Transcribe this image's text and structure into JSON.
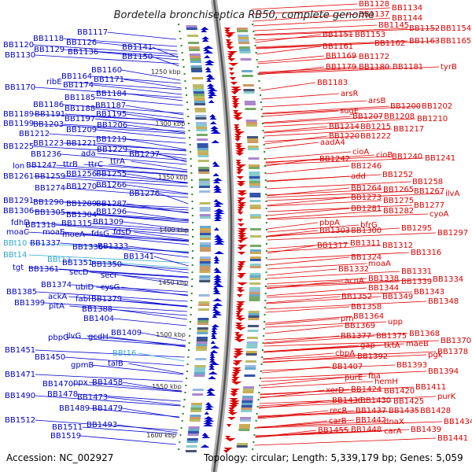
{
  "title": "Bordetella bronchiseptica RB50, complete genome",
  "footer": {
    "accession": "Accession: NC_002927",
    "summary": "Topology: circular; Length: 5,339,179 bp; Genes: 5,059"
  },
  "colors": {
    "forward": "#0000cc",
    "reverse": "#dd0000",
    "rna": "#33aacc",
    "backbone": "#888888",
    "tick": "#228822"
  },
  "ruler": [
    "1250 kbp",
    "1300 kbp",
    "1350 kbp",
    "1400 kbp",
    "1450 kbp",
    "1500 kbp",
    "1550 kbp",
    "1600 kbp"
  ],
  "left_labels": [
    [
      "BB1117",
      98,
      44
    ],
    [
      "BB1118",
      42,
      52
    ],
    [
      "BB1126",
      84,
      57
    ],
    [
      "BB1120",
      4,
      60
    ],
    [
      "BB1141",
      155,
      63
    ],
    [
      "BB1129",
      43,
      66
    ],
    [
      "BB1136",
      86,
      69
    ],
    [
      "BB1130",
      6,
      73
    ],
    [
      "BB1150",
      155,
      75
    ],
    [
      "BB1160",
      116,
      92
    ],
    [
      "BB1164",
      78,
      100
    ],
    [
      "ribE",
      59,
      107
    ],
    [
      "BB1171",
      119,
      104
    ],
    [
      "BB1174",
      80,
      111
    ],
    [
      "BB1170",
      6,
      114
    ],
    [
      "BB1184",
      122,
      122
    ],
    [
      "BB1185",
      82,
      127
    ],
    [
      "BB1186",
      42,
      136
    ],
    [
      "BB1187",
      121,
      137
    ],
    [
      "BB1188",
      82,
      141
    ],
    [
      "BB1189",
      4,
      148
    ],
    [
      "BB1191",
      44,
      148
    ],
    [
      "BB1195",
      122,
      148
    ],
    [
      "BB1197",
      82,
      154
    ],
    [
      "BB1199",
      4,
      160
    ],
    [
      "BB1203",
      42,
      161
    ],
    [
      "BB1206",
      123,
      162
    ],
    [
      "BB1209",
      84,
      168
    ],
    [
      "BB1212",
      24,
      173
    ],
    [
      "BB1219",
      122,
      180
    ],
    [
      "BB1223",
      42,
      185
    ],
    [
      "BB1221",
      84,
      185
    ],
    [
      "BB1225",
      4,
      189
    ],
    [
      "BB1229",
      123,
      193
    ],
    [
      "BB1236",
      39,
      199
    ],
    [
      "ada",
      103,
      198
    ],
    [
      "BB1237",
      164,
      199
    ],
    [
      "ttrA",
      140,
      208
    ],
    [
      "lon",
      16,
      214
    ],
    [
      "BB1247",
      33,
      213
    ],
    [
      "ttrB",
      80,
      212
    ],
    [
      "ttrC",
      112,
      212
    ],
    [
      "BB1256",
      84,
      224
    ],
    [
      "BB1255",
      122,
      224
    ],
    [
      "BB1261",
      4,
      227
    ],
    [
      "BB1259",
      44,
      227
    ],
    [
      "BB1270",
      84,
      240
    ],
    [
      "BB1266",
      122,
      238
    ],
    [
      "BB1274",
      44,
      242
    ],
    [
      "BB1276",
      164,
      249
    ],
    [
      "BB1291",
      4,
      258
    ],
    [
      "BB1290",
      42,
      260
    ],
    [
      "BB1289",
      84,
      262
    ],
    [
      "BB1287",
      122,
      262
    ],
    [
      "BB1306",
      4,
      271
    ],
    [
      "BB1305",
      44,
      273
    ],
    [
      "BB1304",
      84,
      276
    ],
    [
      "BB1296",
      122,
      272
    ],
    [
      "fdhD",
      14,
      286
    ],
    [
      "BB1318",
      32,
      289
    ],
    [
      "BB1315",
      78,
      287
    ],
    [
      "BB1309",
      118,
      285
    ],
    [
      "moaC",
      8,
      298
    ],
    [
      "moaE",
      54,
      298
    ],
    [
      "moeA",
      79,
      301
    ],
    [
      "fdsG",
      116,
      300
    ],
    [
      "fdsD",
      144,
      298
    ],
    [
      "BBt10",
      4,
      312
    ],
    [
      "BB1337",
      38,
      312
    ],
    [
      "BB1336",
      92,
      317
    ],
    [
      "BB1333",
      124,
      316
    ],
    [
      "BBt14",
      4,
      327
    ],
    [
      "BBt13",
      60,
      333
    ],
    [
      "BB1341",
      157,
      329
    ],
    [
      "tgt",
      16,
      343
    ],
    [
      "BB1351",
      79,
      337
    ],
    [
      "BB1361",
      36,
      345
    ],
    [
      "BB1350",
      116,
      339
    ],
    [
      "secD",
      88,
      349
    ],
    [
      "secF",
      128,
      353
    ],
    [
      "BB1374",
      52,
      365
    ],
    [
      "ubiD",
      96,
      368
    ],
    [
      "cysG",
      128,
      368
    ],
    [
      "BB1385",
      8,
      374
    ],
    [
      "ackA",
      61,
      380
    ],
    [
      "fabI",
      96,
      383
    ],
    [
      "BB1379",
      116,
      383
    ],
    [
      "BB1399",
      18,
      388
    ],
    [
      "pitA",
      62,
      392
    ],
    [
      "BB1388",
      104,
      396
    ],
    [
      "BB1404",
      106,
      408
    ],
    [
      "BB1409",
      141,
      426
    ],
    [
      "pbpG",
      61,
      432
    ],
    [
      "ilvG",
      84,
      430
    ],
    [
      "gcdH",
      112,
      431
    ],
    [
      "BB1451",
      6,
      448
    ],
    [
      "BBt16",
      143,
      452
    ],
    [
      "BB1450",
      44,
      457
    ],
    [
      "gpmB",
      90,
      467
    ],
    [
      "talB",
      137,
      465
    ],
    [
      "BB1471",
      6,
      479
    ],
    [
      "BB1470",
      54,
      491
    ],
    [
      "ppx",
      93,
      489
    ],
    [
      "BB1458",
      117,
      489
    ],
    [
      "BB1490",
      6,
      506
    ],
    [
      "BB1478",
      60,
      504
    ],
    [
      "BB1473",
      98,
      508
    ],
    [
      "BB1489",
      75,
      522
    ],
    [
      "BB1479",
      117,
      522
    ],
    [
      "BB1512",
      6,
      537
    ],
    [
      "BB1511",
      66,
      546
    ],
    [
      "BB1493",
      110,
      543
    ],
    [
      "BB1519",
      64,
      557
    ]
  ],
  "right_labels": [
    [
      "BB1128",
      456,
      8
    ],
    [
      "BB1134",
      498,
      13
    ],
    [
      "BB1137",
      456,
      21
    ],
    [
      "BB1144",
      498,
      26
    ],
    [
      "BB1145",
      481,
      35
    ],
    [
      "BB1152",
      520,
      39
    ],
    [
      "BB1154",
      560,
      39
    ],
    [
      "BB1151",
      410,
      47
    ],
    [
      "BB1153",
      451,
      47
    ],
    [
      "BB1163",
      520,
      55
    ],
    [
      "BB1165",
      560,
      55
    ],
    [
      "BB1161",
      410,
      62
    ],
    [
      "BB1162",
      476,
      58
    ],
    [
      "BB1169",
      414,
      74
    ],
    [
      "BB1172",
      456,
      75
    ],
    [
      "BB1179",
      414,
      88
    ],
    [
      "BB1180",
      456,
      88
    ],
    [
      "BB1181",
      499,
      88
    ],
    [
      "tyrB",
      560,
      88
    ],
    [
      "BB1183",
      403,
      108
    ],
    [
      "arsR",
      433,
      122
    ],
    [
      "arsB",
      468,
      131
    ],
    [
      "BB1200",
      496,
      138
    ],
    [
      "BB1202",
      536,
      138
    ],
    [
      "sugE",
      432,
      144
    ],
    [
      "BB1207",
      448,
      151
    ],
    [
      "BB1208",
      488,
      151
    ],
    [
      "BB1210",
      530,
      154
    ],
    [
      "BB1214",
      418,
      164
    ],
    [
      "BB1215",
      458,
      164
    ],
    [
      "BB1217",
      500,
      167
    ],
    [
      "BB1220",
      418,
      176
    ],
    [
      "BB1222",
      458,
      176
    ],
    [
      "aadA4",
      407,
      184
    ],
    [
      "cioA",
      448,
      196
    ],
    [
      "cioB",
      478,
      200
    ],
    [
      "BB1240",
      498,
      202
    ],
    [
      "BB1241",
      540,
      204
    ],
    [
      "BB1242",
      406,
      205
    ],
    [
      "BB1246",
      446,
      214
    ],
    [
      "add",
      446,
      227
    ],
    [
      "BB1252",
      486,
      225
    ],
    [
      "BB1258",
      524,
      234
    ],
    [
      "BB1264",
      446,
      242
    ],
    [
      "BB1265",
      487,
      244
    ],
    [
      "BB1267",
      526,
      246
    ],
    [
      "ilvA",
      566,
      249
    ],
    [
      "BB1273",
      446,
      254
    ],
    [
      "BB1275",
      487,
      258
    ],
    [
      "BB1277",
      526,
      264
    ],
    [
      "BB1281",
      446,
      268
    ],
    [
      "BB1282",
      487,
      271
    ],
    [
      "cyoA",
      546,
      275
    ],
    [
      "pbpA",
      406,
      286
    ],
    [
      "bfrG",
      458,
      289
    ],
    [
      "BB1295",
      510,
      293
    ],
    [
      "BB1303",
      406,
      296
    ],
    [
      "BB1300",
      446,
      296
    ],
    [
      "BB1297",
      556,
      299
    ],
    [
      "BB1317",
      403,
      315
    ],
    [
      "BB1311",
      445,
      312
    ],
    [
      "BB1312",
      486,
      315
    ],
    [
      "BB1316",
      522,
      324
    ],
    [
      "BB1324",
      446,
      330
    ],
    [
      "moaA",
      468,
      338
    ],
    [
      "BB1332",
      430,
      345
    ],
    [
      "BB1331",
      510,
      348
    ],
    [
      "acnA",
      438,
      360
    ],
    [
      "BB1338",
      468,
      357
    ],
    [
      "BB1339",
      510,
      361
    ],
    [
      "BB1334",
      550,
      358
    ],
    [
      "BB1344",
      468,
      369
    ],
    [
      "BB1343",
      526,
      374
    ],
    [
      "BB1352",
      434,
      380
    ],
    [
      "BB1349",
      486,
      380
    ],
    [
      "BB1348",
      544,
      386
    ],
    [
      "BB1358",
      446,
      393
    ],
    [
      "prn",
      433,
      408
    ],
    [
      "BB1364",
      449,
      405
    ],
    [
      "BB1369",
      438,
      417
    ],
    [
      "upp",
      493,
      412
    ],
    [
      "BB1368",
      520,
      427
    ],
    [
      "BB1377",
      433,
      430
    ],
    [
      "BB1375",
      478,
      430
    ],
    [
      "BB1370",
      560,
      436
    ],
    [
      "gap",
      458,
      442
    ],
    [
      "tktA",
      488,
      442
    ],
    [
      "maeB",
      516,
      440
    ],
    [
      "cbpA",
      426,
      452
    ],
    [
      "BB1392",
      454,
      456
    ],
    [
      "pgk",
      544,
      454
    ],
    [
      "BB1378",
      556,
      450
    ],
    [
      "BB1393",
      504,
      467
    ],
    [
      "BB1407",
      422,
      469
    ],
    [
      "BB1394",
      544,
      475
    ],
    [
      "purE",
      438,
      483
    ],
    [
      "fba",
      468,
      481
    ],
    [
      "hemH",
      476,
      488
    ],
    [
      "BB1411",
      528,
      495
    ],
    [
      "xerD",
      414,
      499
    ],
    [
      "BB1424",
      446,
      498
    ],
    [
      "BB1420",
      488,
      500
    ],
    [
      "purK",
      556,
      507
    ],
    [
      "BB1436",
      422,
      512
    ],
    [
      "BB1430",
      458,
      512
    ],
    [
      "BB1425",
      500,
      513
    ],
    [
      "recR",
      419,
      525
    ],
    [
      "BB1437",
      452,
      525
    ],
    [
      "BB1435",
      494,
      525
    ],
    [
      "BB1428",
      534,
      525
    ],
    [
      "carB",
      418,
      538
    ],
    [
      "BB1442",
      452,
      537
    ],
    [
      "dnaX",
      488,
      539
    ],
    [
      "BB1434",
      564,
      539
    ],
    [
      "BB1455",
      404,
      550
    ],
    [
      "BB1448",
      446,
      549
    ],
    [
      "carA",
      488,
      551
    ],
    [
      "BB1439",
      522,
      549
    ],
    [
      "BB1441",
      556,
      560
    ]
  ]
}
